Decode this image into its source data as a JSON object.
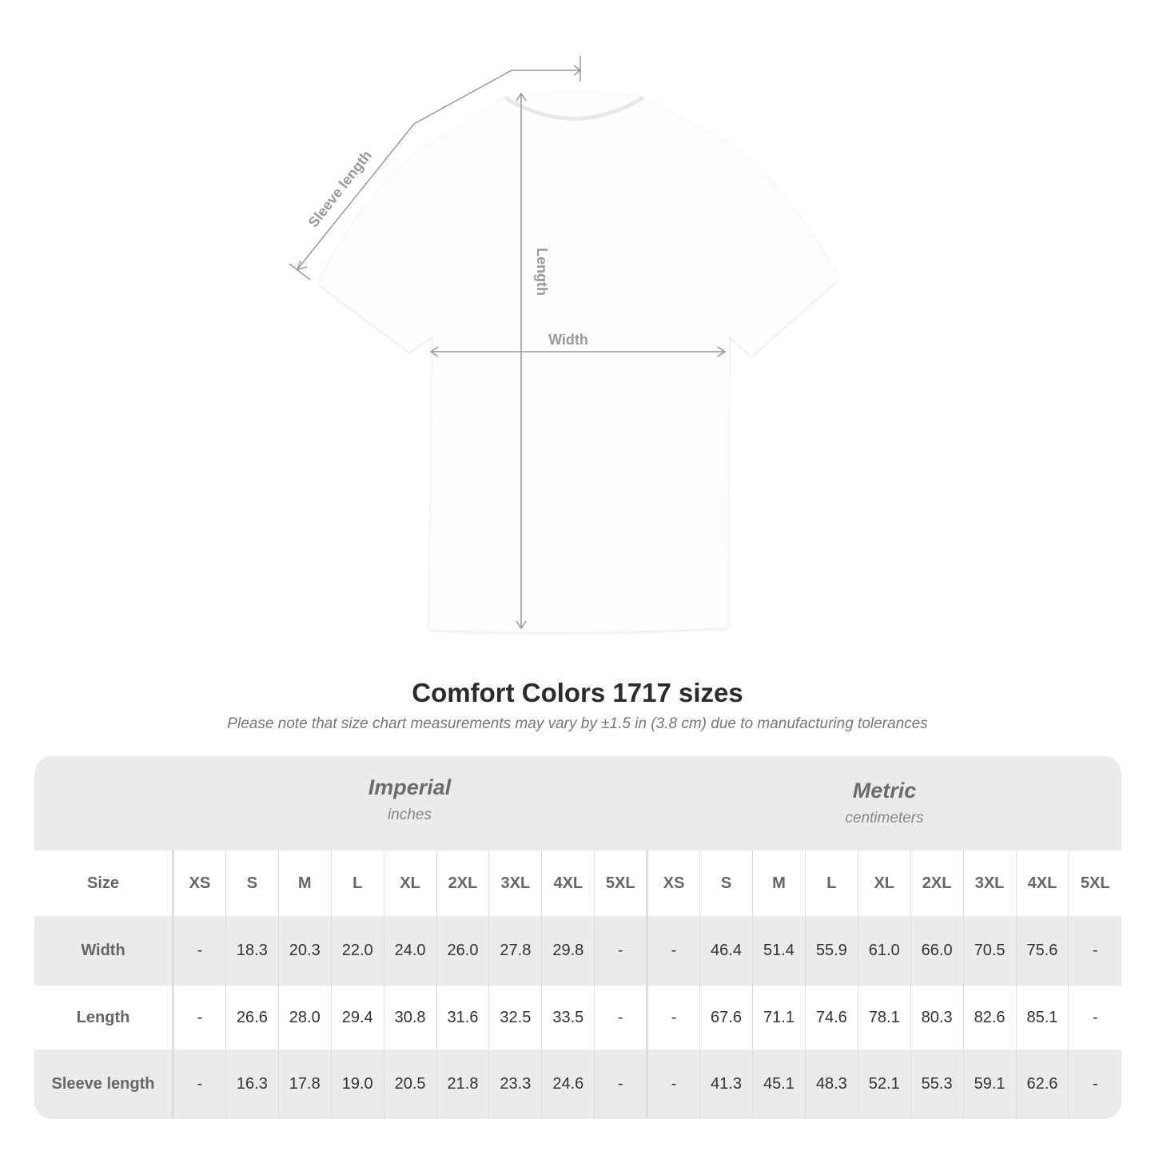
{
  "diagram": {
    "sleeve_label": "Sleeve length",
    "length_label": "Length",
    "width_label": "Width"
  },
  "title": "Comfort Colors 1717 sizes",
  "note": "Please note that size chart measurements may vary by ±1.5 in (3.8 cm) due to manufacturing tolerances",
  "imperial": {
    "name": "Imperial",
    "unit": "inches"
  },
  "metric": {
    "name": "Metric",
    "unit": "centimeters"
  },
  "size_label": "Size",
  "sizes": [
    "XS",
    "S",
    "M",
    "L",
    "XL",
    "2XL",
    "3XL",
    "4XL",
    "5XL"
  ],
  "rows": [
    {
      "label": "Width",
      "imperial": [
        "-",
        "18.3",
        "20.3",
        "22.0",
        "24.0",
        "26.0",
        "27.8",
        "29.8",
        "-"
      ],
      "metric": [
        "-",
        "46.4",
        "51.4",
        "55.9",
        "61.0",
        "66.0",
        "70.5",
        "75.6",
        "-"
      ]
    },
    {
      "label": "Length",
      "imperial": [
        "-",
        "26.6",
        "28.0",
        "29.4",
        "30.8",
        "31.6",
        "32.5",
        "33.5",
        "-"
      ],
      "metric": [
        "-",
        "67.6",
        "71.1",
        "74.6",
        "78.1",
        "80.3",
        "82.6",
        "85.1",
        "-"
      ]
    },
    {
      "label": "Sleeve length",
      "imperial": [
        "-",
        "16.3",
        "17.8",
        "19.0",
        "20.5",
        "21.8",
        "23.3",
        "24.6",
        "-"
      ],
      "metric": [
        "-",
        "41.3",
        "45.1",
        "48.3",
        "52.1",
        "55.3",
        "59.1",
        "62.6",
        "-"
      ]
    }
  ]
}
